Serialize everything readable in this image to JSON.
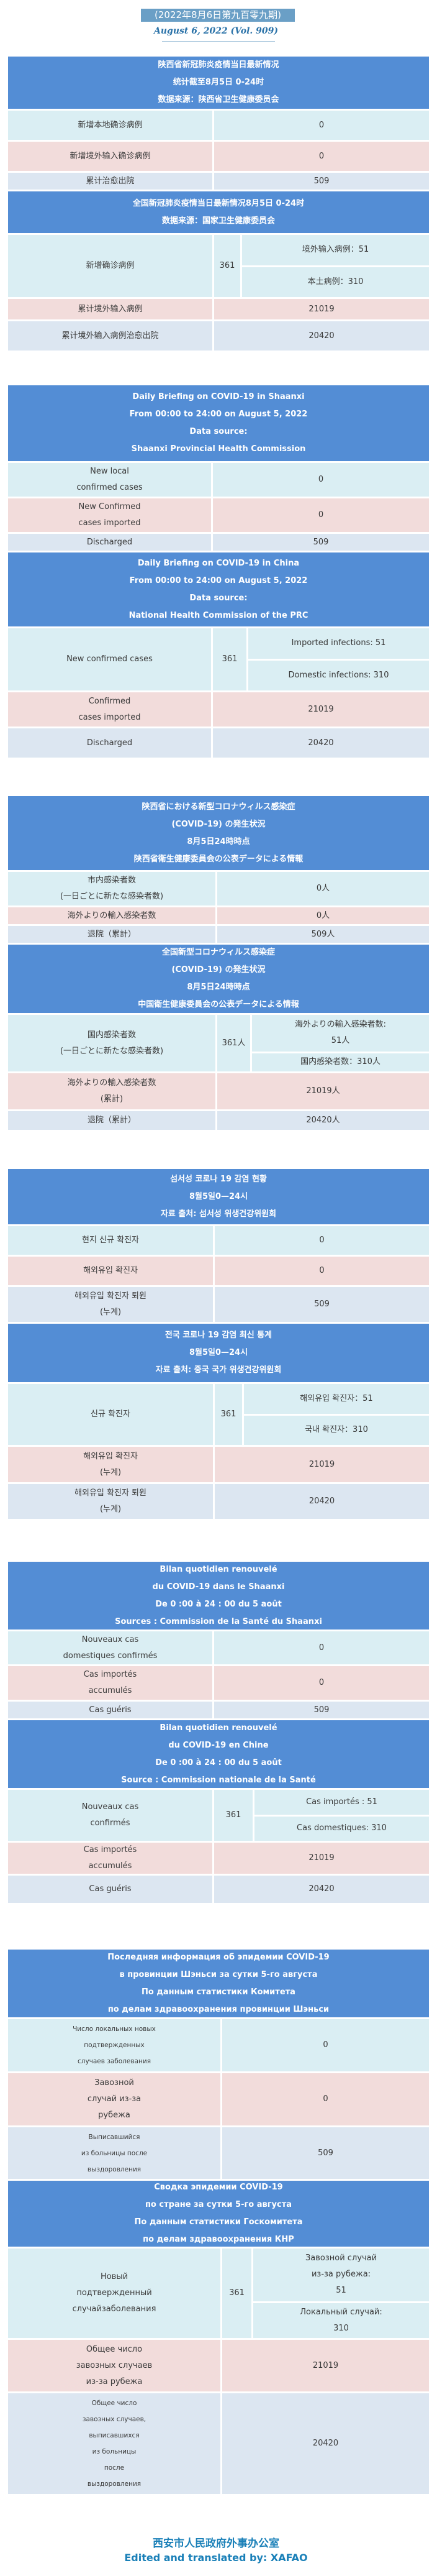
{
  "issue_label": "(2022年8月6日第九百零九期)",
  "date_label": "August 6, 2022 (Vol. 909)",
  "colors": {
    "header": "#538dd5",
    "row_new": "#daeef3",
    "row_imported": "#f2dcdb",
    "row_total": "#dce6f1",
    "footer": "#1a80b8"
  },
  "sections": [
    {
      "lang": "zh",
      "provincial": {
        "header": [
          "陕西省新冠肺炎疫情当日最新情况",
          "统计截至8月5日 0-24时",
          "数据来源：陕西省卫生健康委员会"
        ],
        "rows": [
          {
            "label": [
              "新增本地确诊病例"
            ],
            "value": "0"
          },
          {
            "label": [
              "新增境外输入确诊病例"
            ],
            "value": "0"
          },
          {
            "label": [
              "累计治愈出院"
            ],
            "value": "509"
          }
        ]
      },
      "national": {
        "header": [
          "全国新冠肺炎疫情当日最新情况8月5日 0-24时",
          "数据来源：国家卫生健康委员会"
        ],
        "split": {
          "label": [
            "新增确诊病例"
          ],
          "total": "361",
          "sub": [
            [
              "境外输入病例：51"
            ],
            [
              "本土病例：310"
            ]
          ]
        },
        "rows": [
          {
            "label": [
              "累计境外输入病例"
            ],
            "value": "21019"
          },
          {
            "label": [
              "累计境外输入病例治愈出院"
            ],
            "value": "20420"
          }
        ]
      }
    },
    {
      "lang": "en",
      "provincial": {
        "header": [
          "Daily Briefing on COVID-19 in Shaanxi",
          "From 00:00 to 24:00 on August 5, 2022",
          "Data source:",
          "Shaanxi Provincial Health Commission"
        ],
        "rows": [
          {
            "label": [
              "New local",
              "confirmed cases"
            ],
            "value": "0"
          },
          {
            "label": [
              "New Confirmed",
              "cases imported"
            ],
            "value": "0"
          },
          {
            "label": [
              "Discharged"
            ],
            "value": "509"
          }
        ]
      },
      "national": {
        "header": [
          "Daily Briefing on COVID-19 in China",
          "From 00:00 to 24:00 on  August 5, 2022",
          "Data source:",
          "National Health Commission of the PRC"
        ],
        "split": {
          "label": [
            "New confirmed cases"
          ],
          "total": "361",
          "sub": [
            [
              "Imported infections: 51"
            ],
            [
              "Domestic infections: 310"
            ]
          ]
        },
        "rows": [
          {
            "label": [
              "Confirmed",
              "cases imported"
            ],
            "value": "21019"
          },
          {
            "label": [
              "Discharged"
            ],
            "value": "20420"
          }
        ]
      }
    },
    {
      "lang": "ja",
      "provincial": {
        "header": [
          "陕西省における新型コロナウィルス感染症",
          "(COVID-19) の発生状況",
          "8月5日24時時点",
          "陕西省衛生健康委員会の公表データによる情報"
        ],
        "rows": [
          {
            "label": [
              "市内感染者数",
              "(一日ごとに新たな感染者数)"
            ],
            "value": "0人"
          },
          {
            "label": [
              "海外よりの輸入感染者数"
            ],
            "value": "0人"
          },
          {
            "label": [
              "退院（累計）"
            ],
            "value": "509人"
          }
        ]
      },
      "national": {
        "header": [
          "全国新型コロナウィルス感染症",
          "(COVID-19) の発生状況",
          "8月5日24時時点",
          "中国衛生健康委員会の公表データによる情報"
        ],
        "split": {
          "label": [
            "国内感染者数",
            "(一日ごとに新たな感染者数)"
          ],
          "total": "361人",
          "sub": [
            [
              "海外よりの輸入感染者数:",
              "51人"
            ],
            [
              "国内感染者数：310人"
            ]
          ]
        },
        "rows": [
          {
            "label": [
              "海外よりの輸入感染者数",
              "(累計)"
            ],
            "value": "21019人"
          },
          {
            "label": [
              "退院（累計）"
            ],
            "value": "20420人"
          }
        ]
      }
    },
    {
      "lang": "ko",
      "provincial": {
        "header": [
          "섬서성 코로나 19 감염 현황",
          "8월5일0—24시",
          "자료 출처: 섬서성 위생건강위원회"
        ],
        "rows": [
          {
            "label": [
              "현지 신규 확진자"
            ],
            "value": "0"
          },
          {
            "label": [
              "해외유입 확진자"
            ],
            "value": "0"
          },
          {
            "label": [
              "해외유입 확진자 퇴원",
              "(누계)"
            ],
            "value": "509"
          }
        ]
      },
      "national": {
        "header": [
          "전국 코로나 19 감염 최신 통계",
          "8월5일0—24시",
          "자료 출처: 중국 국가 위생건강위원회"
        ],
        "split": {
          "label": [
            "신규 확진자"
          ],
          "total": "361",
          "sub": [
            [
              "해외유입 확진자：51"
            ],
            [
              "국내 확진자：310"
            ]
          ]
        },
        "rows": [
          {
            "label": [
              "해외유입 확진자",
              "(누계)"
            ],
            "value": "21019"
          },
          {
            "label": [
              "해외유입 확진자 퇴원",
              "(누계)"
            ],
            "value": "20420"
          }
        ]
      }
    },
    {
      "lang": "fr",
      "provincial": {
        "header": [
          "Bilan quotidien renouvelé",
          "du COVID-19 dans le Shaanxi",
          "De 0 :00 à 24 : 00 du 5 août",
          "Sources : Commission de la Santé du Shaanxi"
        ],
        "rows": [
          {
            "label": [
              "Nouveaux cas",
              "domestiques confirmés"
            ],
            "value": "0"
          },
          {
            "label": [
              "Cas importés",
              "accumulés"
            ],
            "value": "0"
          },
          {
            "label": [
              "Cas guéris"
            ],
            "value": "509"
          }
        ]
      },
      "national": {
        "header": [
          "Bilan quotidien renouvelé",
          "du COVID-19 en Chine",
          "De 0 :00 à 24 : 00 du 5 août",
          "Source : Commission nationale de la Santé"
        ],
        "split": {
          "label": [
            "Nouveaux cas",
            "confirmés"
          ],
          "total": "361",
          "sub": [
            [
              "Cas importés : 51"
            ],
            [
              "Cas domestiques: 310"
            ]
          ]
        },
        "rows": [
          {
            "label": [
              "Cas importés",
              "accumulés"
            ],
            "value": "21019"
          },
          {
            "label": [
              "Cas guéris"
            ],
            "value": "20420"
          }
        ]
      }
    },
    {
      "lang": "ru",
      "provincial": {
        "header": [
          "Последняя информация об эпидемии COVID-19",
          "в провинции Шэньси за сутки  5-го августа",
          "По данным статистики Комитета",
          "по делам здравоохранения провинции Шэньси"
        ],
        "rows": [
          {
            "label": [
              "Число локальных новых",
              "подтвержденных",
              "случаев заболевания"
            ],
            "value": "0"
          },
          {
            "label": [
              "Завозной",
              "случай из-за",
              "рубежа"
            ],
            "value": "0"
          },
          {
            "label": [
              "Выписавшийся",
              "из больницы после",
              "выздоровления"
            ],
            "value": "509"
          }
        ]
      },
      "national": {
        "header": [
          "Сводка эпидемии COVID-19",
          "по стране за сутки  5-го августа",
          "По данным статистики Госкомитета",
          "по делам здравоохранения КНР"
        ],
        "split": {
          "label": [
            "Новый",
            "подтвержденный",
            "случайзаболевания"
          ],
          "total": "361",
          "sub": [
            [
              "Завозной случай",
              "из-за рубежа:",
              "51"
            ],
            [
              "Локальный случай:",
              "310"
            ]
          ]
        },
        "rows": [
          {
            "label": [
              "Общее число",
              "завозных случаев",
              "из-за рубежа"
            ],
            "value": "21019"
          },
          {
            "label": [
              "Общее число",
              "завозных случаев,",
              "выписавшихся",
              "из больницы",
              "после",
              "выздоровления"
            ],
            "value": "20420"
          }
        ]
      }
    }
  ],
  "footer": {
    "org": "西安市人民政府外事办公室",
    "credit": "Edited and translated by: XAFAO"
  }
}
